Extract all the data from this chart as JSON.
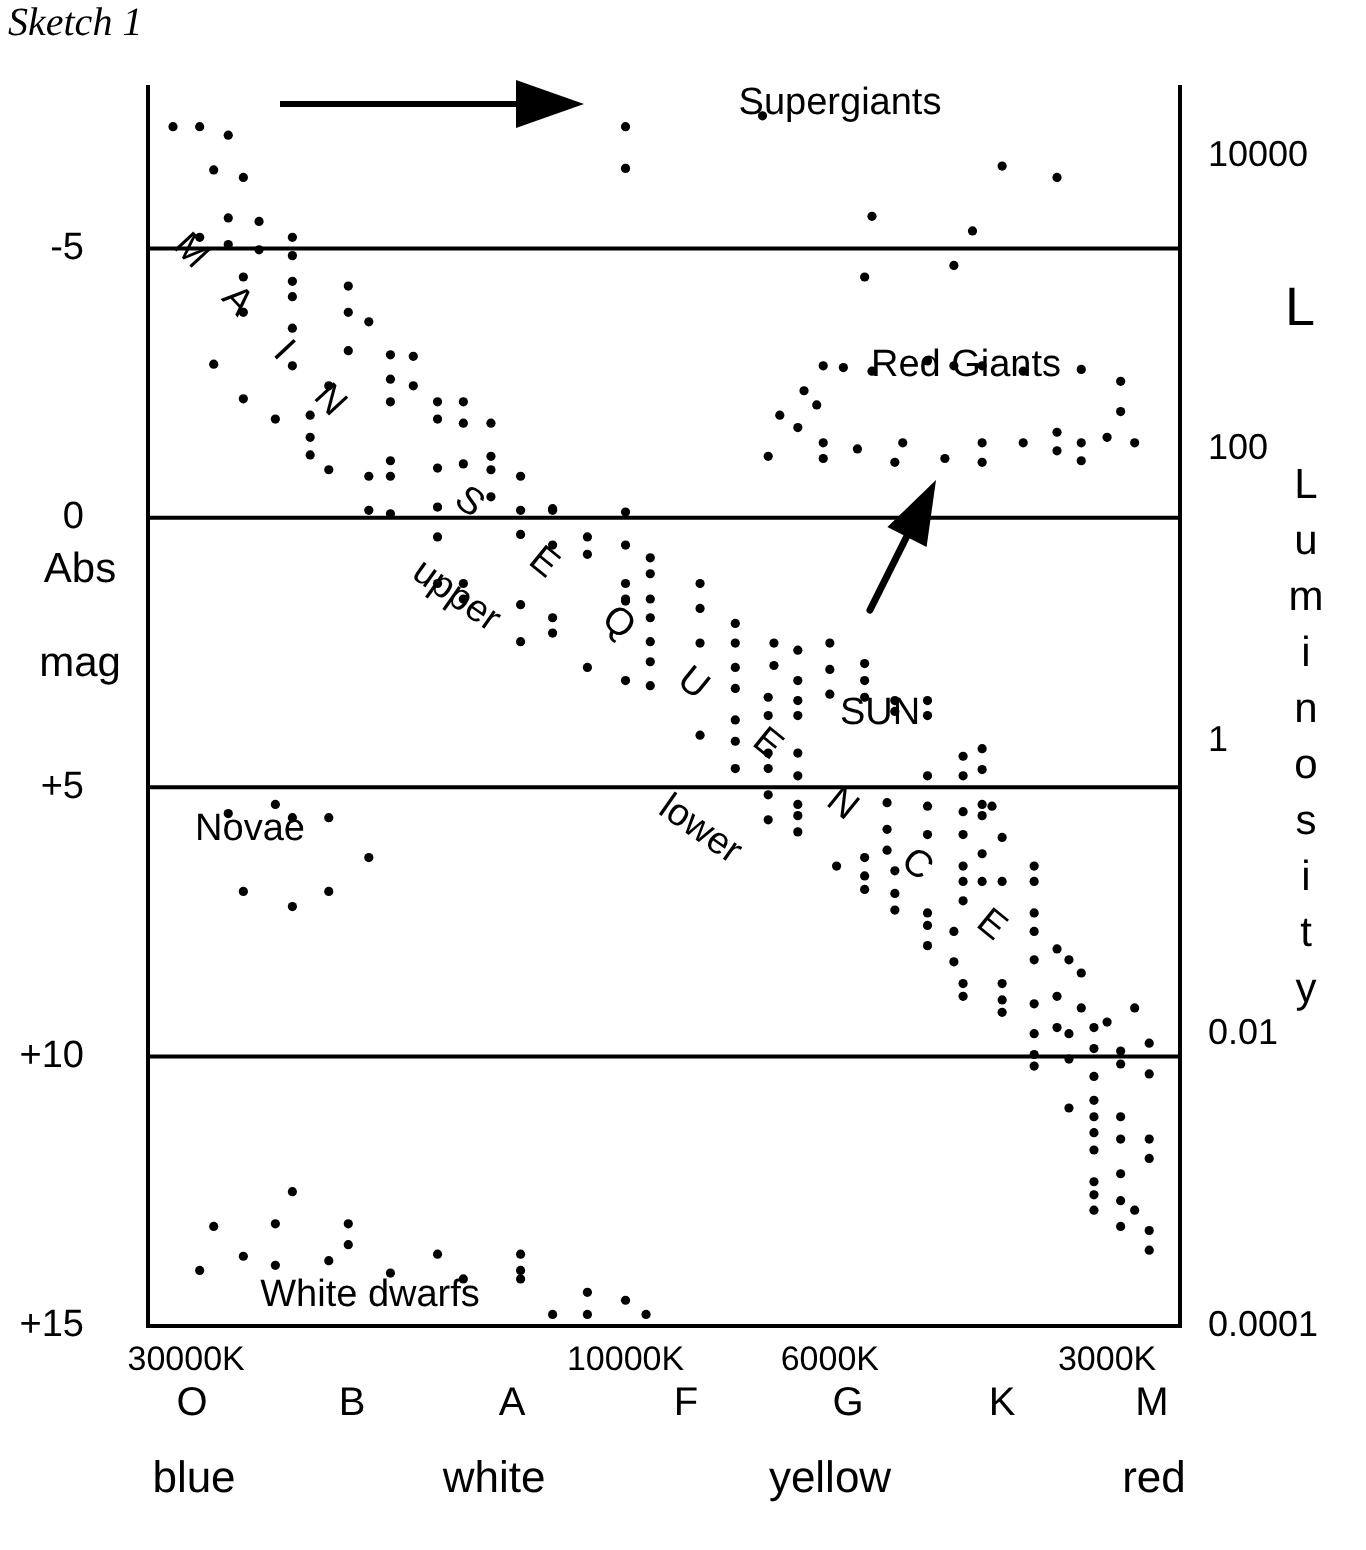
{
  "chart_data": {
    "type": "scatter",
    "title": "Sketch 1",
    "ylabel": "Luminosity",
    "y2label": "Abs mag",
    "log": "xy",
    "marker": "circle",
    "ref_lines": [
      {
        "axis": "y2",
        "value": -5
      },
      {
        "axis": "y2",
        "value": 0
      },
      {
        "axis": "y2",
        "value": 5
      },
      {
        "axis": "y2",
        "value": 10
      }
    ],
    "xlim": [
      33000,
      2500
    ],
    "xticks": [
      {
        "value": 30000,
        "label": "30000K"
      },
      {
        "value": 10000,
        "label": "10000K"
      },
      {
        "value": 6000,
        "label": "6000K"
      },
      {
        "value": 3000,
        "label": "3000K"
      }
    ],
    "y2lim": [
      15,
      -8
    ],
    "y2ticks": [
      -5,
      0,
      {
        "value": 5,
        "label": "+5"
      },
      {
        "value": 10,
        "label": "+10"
      },
      {
        "value": 15,
        "label": "+15"
      }
    ],
    "ylim": [
      0.0001,
      30000
    ],
    "yticks": [
      10000,
      100,
      1,
      0.01,
      0.0001
    ],
    "annotations": [
      "Supergiants",
      "Red Giants",
      "MAIN",
      "SEQUENCE",
      "upper",
      "lower",
      "SUN",
      "Novae",
      "White dwarfs",
      "L",
      "O",
      "B",
      "A",
      "F",
      "G",
      "K",
      "M",
      "blue",
      "white",
      "yellow",
      "red"
    ],
    "series": [
      {
        "color": "#000000",
        "x": [
          31000,
          29000,
          27000,
          28000,
          26000,
          10000,
          10000,
          7100,
          3900,
          3400,
          5400,
          4200,
          5500,
          4400
        ],
        "values": [
          16000,
          16000,
          14000,
          8100,
          7200,
          16000,
          8300,
          19000,
          8600,
          7200,
          3900,
          3100,
          1500,
          1800
        ]
      },
      {
        "color": "#000000",
        "x": [
          6100,
          5800,
          5400,
          4700,
          4400,
          4100,
          3700,
          3200,
          2900,
          6400,
          6200,
          6800,
          2900,
          6500,
          7000,
          6100,
          6100,
          5600,
          5100,
          5000,
          4500,
          4100,
          4100,
          3700,
          3400,
          3400,
          3200,
          3000,
          2800,
          3200
        ],
        "values": [
          370,
          360,
          340,
          400,
          370,
          370,
          340,
          350,
          290,
          250,
          200,
          170,
          180,
          140,
          89,
          110,
          86,
          100,
          81,
          110,
          86,
          110,
          81,
          110,
          97,
          130,
          110,
          120,
          110,
          83
        ]
      },
      {
        "color": "#000000",
        "x": [
          27000,
          24000,
          23000,
          21000,
          19000,
          26000,
          21000,
          23000
        ],
        "values": [
          0.32,
          0.37,
          0.3,
          0.3,
          0.16,
          0.094,
          0.094,
          0.074
        ]
      },
      {
        "color": "#000000",
        "x": [
          23000,
          28000,
          24000,
          20000,
          20000,
          26000,
          24000,
          21000,
          29000,
          18000,
          16000,
          15000,
          13000,
          13000,
          13000,
          11000,
          12000,
          10000,
          11000,
          9500
        ],
        "values": [
          0.00083,
          0.00048,
          0.0005,
          0.0005,
          0.00036,
          0.0003,
          0.00026,
          0.00028,
          0.00024,
          0.00023,
          0.00031,
          0.00021,
          0.00031,
          0.00021,
          0.00024,
          0.00017,
          0.00012,
          0.00015,
          0.00012,
          0.00012
        ]
      },
      {
        "color": "#000000",
        "x": [
          27000,
          25000,
          29000,
          27000,
          25000,
          23000,
          23000,
          26000,
          23000,
          26000,
          23000,
          23000,
          20000,
          20000,
          19000,
          28000,
          23000,
          20000,
          18000,
          17000,
          21000,
          18000,
          17000,
          26000,
          24000,
          22000,
          18000,
          16000,
          15000,
          16000,
          15000,
          14000,
          22000,
          22000,
          18000,
          21000,
          19000,
          18000,
          16000,
          15000,
          14000,
          14000,
          13000,
          19000,
          18000,
          16000,
          14000,
          13000,
          12000,
          12000,
          10000,
          16000,
          13000,
          12000,
          11000,
          11000,
          10000,
          9400,
          9400,
          16000,
          15000,
          15000,
          13000,
          10000,
          10000,
          10000,
          9400,
          9400,
          12000,
          12000,
          13000,
          11000,
          10000,
          9400,
          9400,
          9400
        ],
        "values": [
          3800,
          3600,
          2800,
          2500,
          2300,
          2800,
          2100,
          1500,
          1400,
          860,
          1100,
          670,
          1300,
          860,
          740,
          380,
          370,
          470,
          440,
          430,
          270,
          300,
          270,
          220,
          160,
          170,
          210,
          210,
          210,
          160,
          150,
          150,
          120,
          91,
          83,
          72,
          65,
          65,
          74,
          79,
          89,
          72,
          65,
          38,
          36,
          40,
          47,
          38,
          38,
          39,
          37,
          25,
          26,
          22,
          25,
          19,
          22,
          18,
          14,
          12,
          9.4,
          12,
          8.6,
          12,
          9.4,
          9.1,
          9.4,
          7,
          5.5,
          7,
          4.8,
          3.2,
          2.6,
          4.8,
          3.5,
          2.4
        ]
      },
      {
        "color": "#000000",
        "x": [
          8300,
          8300,
          8300,
          7600,
          7600,
          7600,
          7600,
          6900,
          6900,
          6500,
          6000,
          6000,
          5500,
          5500,
          6500,
          5100,
          4700,
          7000,
          6500,
          6000,
          5500,
          5100,
          4700,
          7600,
          7000,
          6500,
          8300,
          7600,
          7000,
          6500,
          7600,
          7000,
          6500,
          4700,
          4300,
          4100,
          4300,
          4100,
          7000,
          7000,
          6500,
          6500,
          6500,
          5200,
          4700,
          5200,
          4700,
          4300,
          4100,
          4000,
          4100,
          4300,
          3900,
          4100,
          5900,
          5500,
          5200,
          5500,
          5500,
          5100,
          5100,
          5100,
          4300,
          4300,
          4300,
          4100,
          3900,
          4700,
          4700,
          4700,
          3600,
          3600,
          3600,
          3600,
          3600,
          4400,
          4400,
          4300,
          4300,
          3900,
          3900,
          3900,
          3400,
          3300,
          3200,
          3400,
          3200,
          3600,
          3600,
          3400,
          3300,
          3100,
          3000,
          2800,
          3100,
          3600,
          3600,
          3300,
          3100,
          2900,
          2900,
          2700,
          2700,
          3300,
          3100,
          3100,
          2900,
          3100,
          2900,
          2700,
          3100,
          2700,
          2900,
          3100,
          3100,
          2900,
          2800,
          3100,
          2900,
          2700,
          2700
        ],
        "values": [
          12,
          8.1,
          4.7,
          6.4,
          4.7,
          3.2,
          2.3,
          4.7,
          3.3,
          4.2,
          4.7,
          3.1,
          3.4,
          2.6,
          2.6,
          1.9,
          1.9,
          2,
          1.9,
          2.1,
          2,
          1.6,
          1.5,
          1.4,
          1.5,
          1.5,
          1.1,
          1,
          0.83,
          0.83,
          0.65,
          0.65,
          0.58,
          0.58,
          0.79,
          0.89,
          0.58,
          0.64,
          0.43,
          0.29,
          0.37,
          0.31,
          0.24,
          0.38,
          0.36,
          0.25,
          0.23,
          0.33,
          0.37,
          0.36,
          0.31,
          0.23,
          0.22,
          0.17,
          0.14,
          0.16,
          0.18,
          0.12,
          0.097,
          0.13,
          0.091,
          0.07,
          0.14,
          0.11,
          0.081,
          0.11,
          0.11,
          0.067,
          0.055,
          0.04,
          0.14,
          0.11,
          0.067,
          0.05,
          0.032,
          0.05,
          0.031,
          0.022,
          0.018,
          0.022,
          0.017,
          0.014,
          0.038,
          0.032,
          0.026,
          0.018,
          0.015,
          0.016,
          0.01,
          0.011,
          0.01,
          0.011,
          0.012,
          0.015,
          0.0079,
          0.0072,
          0.006,
          0.0067,
          0.0051,
          0.0076,
          0.0062,
          0.0053,
          0.0086,
          0.0031,
          0.0035,
          0.0027,
          0.0027,
          0.0021,
          0.0019,
          0.0019,
          0.0016,
          0.0014,
          0.0011,
          0.00097,
          0.00079,
          0.00072,
          0.00062,
          0.00062,
          0.00048,
          0.00045,
          0.00033
        ]
      }
    ]
  }
}
